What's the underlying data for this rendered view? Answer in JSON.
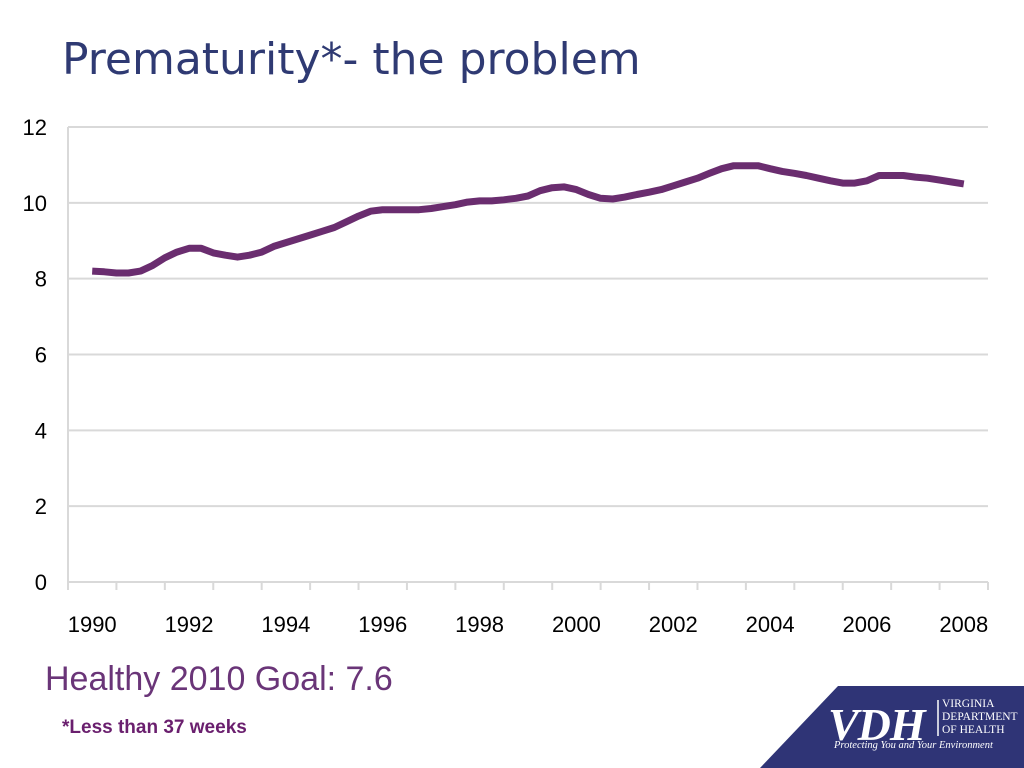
{
  "slide": {
    "title": "Prematurity*- the problem",
    "goal": "Healthy 2010 Goal: 7.6",
    "footnote": "*Less than 37 weeks"
  },
  "logo": {
    "initials": "VDH",
    "agency_lines": [
      "VIRGINIA",
      "DEPARTMENT",
      "OF HEALTH"
    ],
    "tagline": "Protecting You and Your Environment"
  },
  "colors": {
    "title": "#2f3a73",
    "series": "#6a2d6f",
    "goal_text": "#6a3578",
    "logo_panel": "#2f3476",
    "grid": "#d9d9d9"
  },
  "chart_data": {
    "type": "line",
    "title": "",
    "xlabel": "",
    "ylabel": "",
    "x_ticks": [
      "1990",
      "1992",
      "1994",
      "1996",
      "1998",
      "2000",
      "2002",
      "2004",
      "2006",
      "2008"
    ],
    "y_ticks": [
      "0",
      "2",
      "4",
      "6",
      "8",
      "10",
      "12"
    ],
    "ylim": [
      0,
      12
    ],
    "xlim": [
      1989.5,
      2008.5
    ],
    "grid": true,
    "legend": "none",
    "series": [
      {
        "color": "#6a2d6f",
        "x": [
          1990.0,
          1990.25,
          1990.5,
          1990.75,
          1991.0,
          1991.25,
          1991.5,
          1991.75,
          1992.0,
          1992.25,
          1992.5,
          1992.75,
          1993.0,
          1993.25,
          1993.5,
          1993.75,
          1994.0,
          1994.25,
          1994.5,
          1994.75,
          1995.0,
          1995.25,
          1995.5,
          1995.75,
          1996.0,
          1996.25,
          1996.5,
          1996.75,
          1997.0,
          1997.25,
          1997.5,
          1997.75,
          1998.0,
          1998.25,
          1998.5,
          1998.75,
          1999.0,
          1999.25,
          1999.5,
          1999.75,
          2000.0,
          2000.25,
          2000.5,
          2000.75,
          2001.0,
          2001.25,
          2001.5,
          2001.75,
          2002.0,
          2002.25,
          2002.5,
          2002.75,
          2003.0,
          2003.25,
          2003.5,
          2003.75,
          2004.0,
          2004.25,
          2004.5,
          2004.75,
          2005.0,
          2005.25,
          2005.5,
          2005.75,
          2006.0,
          2006.25,
          2006.5,
          2006.75,
          2007.0,
          2007.25,
          2007.5,
          2007.75,
          2008.0
        ],
        "y": [
          8.2,
          8.18,
          8.15,
          8.15,
          8.2,
          8.35,
          8.55,
          8.7,
          8.8,
          8.8,
          8.68,
          8.62,
          8.57,
          8.62,
          8.7,
          8.85,
          8.95,
          9.05,
          9.15,
          9.25,
          9.35,
          9.5,
          9.65,
          9.78,
          9.82,
          9.82,
          9.82,
          9.82,
          9.85,
          9.9,
          9.95,
          10.02,
          10.05,
          10.05,
          10.08,
          10.12,
          10.18,
          10.32,
          10.4,
          10.42,
          10.35,
          10.22,
          10.12,
          10.1,
          10.15,
          10.22,
          10.28,
          10.35,
          10.45,
          10.55,
          10.65,
          10.78,
          10.9,
          10.98,
          10.98,
          10.98,
          10.9,
          10.83,
          10.78,
          10.72,
          10.65,
          10.58,
          10.52,
          10.52,
          10.58,
          10.72,
          10.72,
          10.72,
          10.68,
          10.65,
          10.6,
          10.55,
          10.5
        ]
      }
    ]
  }
}
